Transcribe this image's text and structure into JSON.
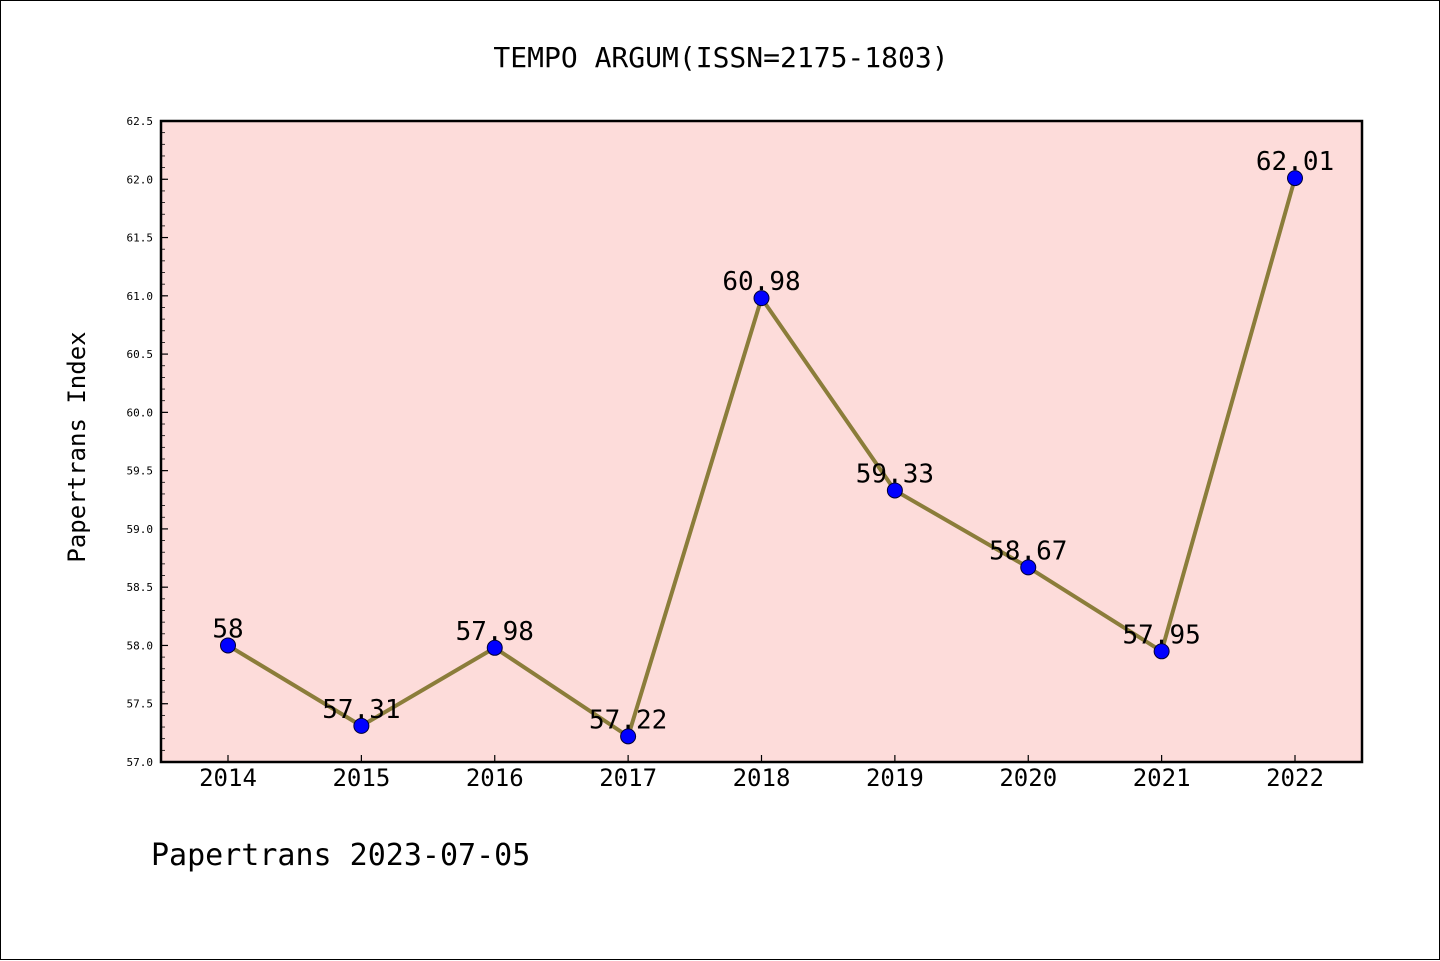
{
  "chart_data": {
    "type": "line",
    "title": "TEMPO ARGUM(ISSN=2175-1803)",
    "ylabel": "Papertrans Index",
    "xlabel": "",
    "footer": "Papertrans 2023-07-05",
    "categories": [
      "2014",
      "2015",
      "2016",
      "2017",
      "2018",
      "2019",
      "2020",
      "2021",
      "2022"
    ],
    "series": [
      {
        "values": [
          58,
          57.31,
          57.98,
          57.22,
          60.98,
          59.33,
          58.67,
          57.95,
          62.01
        ],
        "data_labels": [
          "58",
          "57.31",
          "57.98",
          "57.22",
          "60.98",
          "59.33",
          "58.67",
          "57.95",
          "62.01"
        ]
      }
    ],
    "ylim": [
      57.0,
      62.5
    ],
    "yticks": [
      "57.0",
      "57.5",
      "58.0",
      "58.5",
      "59.0",
      "59.5",
      "60.0",
      "60.5",
      "61.0",
      "61.5",
      "62.0",
      "62.5"
    ],
    "grid": false,
    "colors": {
      "plot_background": "#fddcda",
      "line": "#8b7d3a",
      "marker": "#0000ff"
    }
  }
}
